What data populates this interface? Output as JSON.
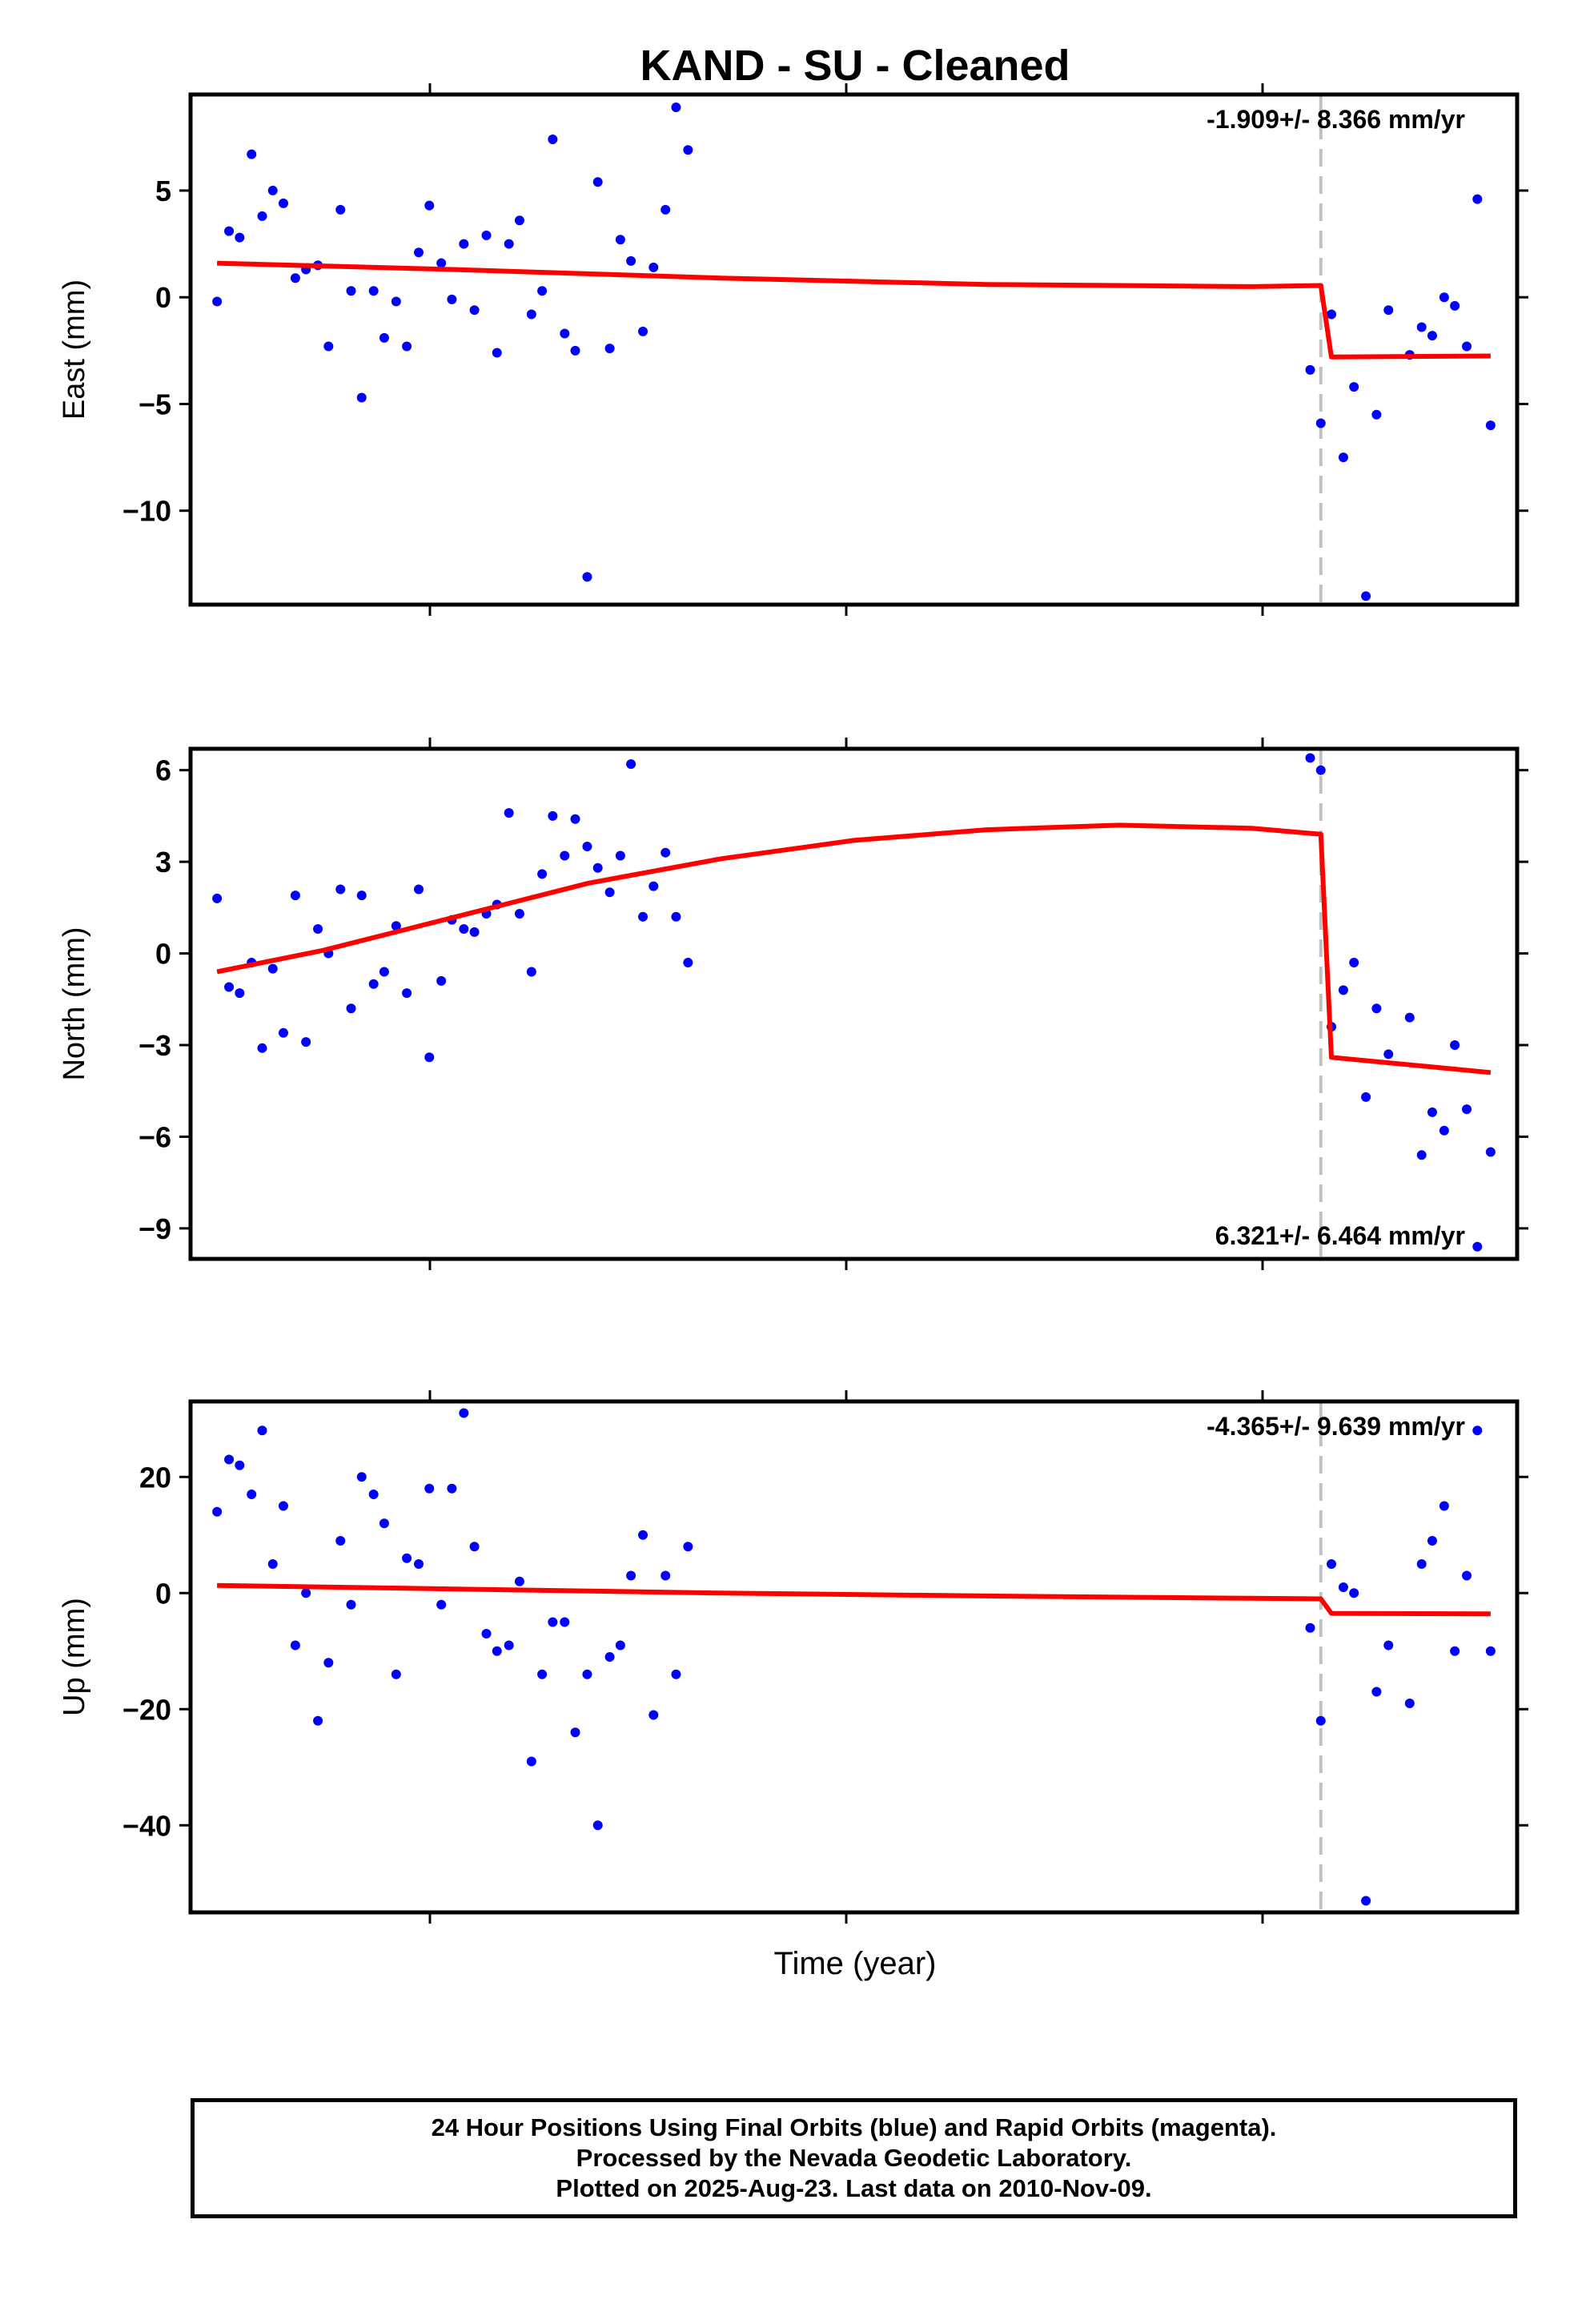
{
  "chart_data": {
    "type": "scatter",
    "title": "KAND  - SU - Cleaned",
    "xlabel": "Time (year)",
    "marker_color": "#0000ff",
    "fit_color": "#ff0000",
    "step_line_color": "#c0c0c0",
    "x_domain": [
      0,
      100
    ],
    "step_x": 85.2,
    "panels": [
      {
        "name": "East",
        "ylabel": "East (mm)",
        "rate_text": "-1.909+/- 8.366 mm/yr",
        "rate_position": "top-right",
        "ylim": [
          -14.4,
          9.5
        ],
        "yticks": [
          5,
          0,
          -5,
          -10
        ],
        "ytick_labels": [
          "5",
          "0",
          "−5",
          "−10"
        ],
        "points": [
          [
            2,
            -0.2
          ],
          [
            2.9,
            3.1
          ],
          [
            3.7,
            2.8
          ],
          [
            4.6,
            6.7
          ],
          [
            5.4,
            3.8
          ],
          [
            6.2,
            5.0
          ],
          [
            7.0,
            4.4
          ],
          [
            7.9,
            0.9
          ],
          [
            8.7,
            1.3
          ],
          [
            9.6,
            1.5
          ],
          [
            10.4,
            -2.3
          ],
          [
            11.3,
            4.1
          ],
          [
            12.1,
            0.3
          ],
          [
            12.9,
            -4.7
          ],
          [
            13.8,
            0.3
          ],
          [
            14.6,
            -1.9
          ],
          [
            15.5,
            -0.2
          ],
          [
            16.3,
            -2.3
          ],
          [
            17.2,
            2.1
          ],
          [
            18.0,
            4.3
          ],
          [
            18.9,
            1.6
          ],
          [
            19.7,
            -0.1
          ],
          [
            20.6,
            2.5
          ],
          [
            21.4,
            -0.6
          ],
          [
            22.3,
            2.9
          ],
          [
            23.1,
            -2.6
          ],
          [
            24.0,
            2.5
          ],
          [
            24.8,
            3.6
          ],
          [
            25.7,
            -0.8
          ],
          [
            26.5,
            0.3
          ],
          [
            27.3,
            7.4
          ],
          [
            28.2,
            -1.7
          ],
          [
            29.0,
            -2.5
          ],
          [
            29.9,
            -13.1
          ],
          [
            30.7,
            5.4
          ],
          [
            31.6,
            -2.4
          ],
          [
            32.4,
            2.7
          ],
          [
            33.2,
            1.7
          ],
          [
            34.1,
            -1.6
          ],
          [
            34.9,
            1.4
          ],
          [
            35.8,
            4.1
          ],
          [
            36.6,
            8.9
          ],
          [
            37.5,
            6.9
          ],
          [
            84.4,
            -3.4
          ],
          [
            85.2,
            -5.9
          ],
          [
            86.0,
            -0.8
          ],
          [
            86.9,
            -7.5
          ],
          [
            87.7,
            -4.2
          ],
          [
            88.6,
            -14.0
          ],
          [
            89.4,
            -5.5
          ],
          [
            90.3,
            -0.6
          ],
          [
            91.9,
            -2.7
          ],
          [
            92.8,
            -1.4
          ],
          [
            93.6,
            -1.8
          ],
          [
            94.5,
            0
          ],
          [
            95.3,
            -0.4
          ],
          [
            96.2,
            -2.3
          ],
          [
            97.0,
            4.6
          ],
          [
            98.0,
            -6.0
          ]
        ],
        "fit": [
          [
            2,
            1.6
          ],
          [
            20,
            1.3
          ],
          [
            40,
            0.9
          ],
          [
            60,
            0.6
          ],
          [
            80,
            0.5
          ],
          [
            85.2,
            0.55
          ],
          [
            86.0,
            -2.8
          ],
          [
            98,
            -2.75
          ]
        ]
      },
      {
        "name": "North",
        "ylabel": "North (mm)",
        "rate_text": "6.321+/- 6.464 mm/yr",
        "rate_position": "bottom-right",
        "ylim": [
          -10.0,
          6.7
        ],
        "yticks": [
          6,
          3,
          0,
          -3,
          -6,
          -9
        ],
        "ytick_labels": [
          "6",
          "3",
          "0",
          "−3",
          "−6",
          "−9"
        ],
        "points": [
          [
            2,
            1.8
          ],
          [
            2.9,
            -1.1
          ],
          [
            3.7,
            -1.3
          ],
          [
            4.6,
            -0.3
          ],
          [
            5.4,
            -3.1
          ],
          [
            6.2,
            -0.5
          ],
          [
            7.0,
            -2.6
          ],
          [
            7.9,
            1.9
          ],
          [
            8.7,
            -2.9
          ],
          [
            9.6,
            0.8
          ],
          [
            10.4,
            0.0
          ],
          [
            11.3,
            2.1
          ],
          [
            12.1,
            -1.8
          ],
          [
            12.9,
            1.9
          ],
          [
            13.8,
            -1.0
          ],
          [
            14.6,
            -0.6
          ],
          [
            15.5,
            0.9
          ],
          [
            16.3,
            -1.3
          ],
          [
            17.2,
            2.1
          ],
          [
            18.0,
            -3.4
          ],
          [
            18.9,
            -0.9
          ],
          [
            19.7,
            1.1
          ],
          [
            20.6,
            0.8
          ],
          [
            21.4,
            0.7
          ],
          [
            22.3,
            1.3
          ],
          [
            23.1,
            1.6
          ],
          [
            24.0,
            4.6
          ],
          [
            24.8,
            1.3
          ],
          [
            25.7,
            -0.6
          ],
          [
            26.5,
            2.6
          ],
          [
            27.3,
            4.5
          ],
          [
            28.2,
            3.2
          ],
          [
            29.0,
            4.4
          ],
          [
            29.9,
            3.5
          ],
          [
            30.7,
            2.8
          ],
          [
            31.6,
            2.0
          ],
          [
            32.4,
            3.2
          ],
          [
            33.2,
            6.2
          ],
          [
            34.1,
            1.2
          ],
          [
            34.9,
            2.2
          ],
          [
            35.8,
            3.3
          ],
          [
            36.6,
            1.2
          ],
          [
            37.5,
            -0.3
          ],
          [
            84.4,
            6.4
          ],
          [
            85.2,
            6.0
          ],
          [
            86.0,
            -2.4
          ],
          [
            86.9,
            -1.2
          ],
          [
            87.7,
            -0.3
          ],
          [
            88.6,
            -4.7
          ],
          [
            89.4,
            -1.8
          ],
          [
            90.3,
            -3.3
          ],
          [
            91.9,
            -2.1
          ],
          [
            92.8,
            -6.6
          ],
          [
            93.6,
            -5.2
          ],
          [
            94.5,
            -5.8
          ],
          [
            95.3,
            -3.0
          ],
          [
            96.2,
            -5.1
          ],
          [
            97.0,
            -9.6
          ],
          [
            98.0,
            -6.5
          ]
        ],
        "fit": [
          [
            2,
            -0.6
          ],
          [
            10,
            0.1
          ],
          [
            20,
            1.2
          ],
          [
            30,
            2.3
          ],
          [
            40,
            3.1
          ],
          [
            50,
            3.7
          ],
          [
            60,
            4.05
          ],
          [
            70,
            4.2
          ],
          [
            80,
            4.1
          ],
          [
            85.2,
            3.9
          ],
          [
            86.0,
            -3.4
          ],
          [
            98,
            -3.9
          ]
        ]
      },
      {
        "name": "Up",
        "ylabel": "Up (mm)",
        "rate_text": "-4.365+/- 9.639 mm/yr",
        "rate_position": "top-right",
        "ylim": [
          -55,
          33
        ],
        "yticks": [
          20,
          0,
          -20,
          -40
        ],
        "ytick_labels": [
          "20",
          "0",
          "−20",
          "−40"
        ],
        "points": [
          [
            2,
            14
          ],
          [
            2.9,
            23
          ],
          [
            3.7,
            22
          ],
          [
            4.6,
            17
          ],
          [
            5.4,
            28
          ],
          [
            6.2,
            5
          ],
          [
            7.0,
            15
          ],
          [
            7.9,
            -9
          ],
          [
            8.7,
            0
          ],
          [
            9.6,
            -22
          ],
          [
            10.4,
            -12
          ],
          [
            11.3,
            9
          ],
          [
            12.1,
            -2
          ],
          [
            12.9,
            20
          ],
          [
            13.8,
            17
          ],
          [
            14.6,
            12
          ],
          [
            15.5,
            -14
          ],
          [
            16.3,
            6
          ],
          [
            17.2,
            5
          ],
          [
            18.0,
            18
          ],
          [
            18.9,
            -2
          ],
          [
            19.7,
            18
          ],
          [
            20.6,
            31
          ],
          [
            21.4,
            8
          ],
          [
            22.3,
            -7
          ],
          [
            23.1,
            -10
          ],
          [
            24.0,
            -9
          ],
          [
            24.8,
            2
          ],
          [
            25.7,
            -29
          ],
          [
            26.5,
            -14
          ],
          [
            27.3,
            -5
          ],
          [
            28.2,
            -5
          ],
          [
            29.0,
            -24
          ],
          [
            29.9,
            -14
          ],
          [
            30.7,
            -40
          ],
          [
            31.6,
            -11
          ],
          [
            32.4,
            -9
          ],
          [
            33.2,
            3
          ],
          [
            34.1,
            10
          ],
          [
            34.9,
            -21
          ],
          [
            35.8,
            3
          ],
          [
            36.6,
            -14
          ],
          [
            37.5,
            8
          ],
          [
            84.4,
            -6
          ],
          [
            85.2,
            -22
          ],
          [
            86.0,
            5
          ],
          [
            86.9,
            1
          ],
          [
            87.7,
            0
          ],
          [
            88.6,
            -53
          ],
          [
            89.4,
            -17
          ],
          [
            90.3,
            -9
          ],
          [
            91.9,
            -19
          ],
          [
            92.8,
            5
          ],
          [
            93.6,
            9
          ],
          [
            94.5,
            15
          ],
          [
            95.3,
            -10
          ],
          [
            96.2,
            3
          ],
          [
            97.0,
            28
          ],
          [
            98.0,
            -10
          ]
        ],
        "fit": [
          [
            2,
            1.3
          ],
          [
            20,
            0.7
          ],
          [
            40,
            0
          ],
          [
            60,
            -0.5
          ],
          [
            80,
            -0.9
          ],
          [
            85.2,
            -1.0
          ],
          [
            86.0,
            -3.5
          ],
          [
            98,
            -3.6
          ]
        ]
      }
    ]
  },
  "footer": {
    "line1": "24 Hour Positions Using Final Orbits (blue) and Rapid Orbits (magenta).",
    "line2": "Processed by the Nevada Geodetic Laboratory.",
    "line3": "Plotted on 2025-Aug-23. Last data on 2010-Nov-09."
  }
}
